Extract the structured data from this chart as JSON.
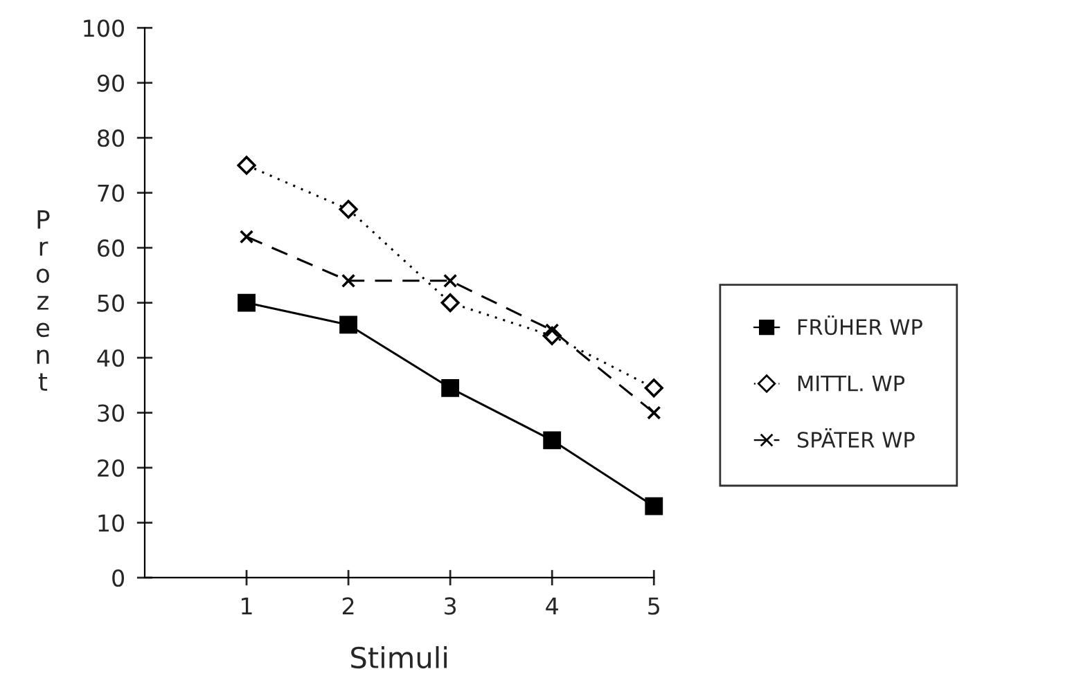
{
  "chart_data": {
    "type": "line",
    "xlabel": "Stimuli",
    "ylabel": "Prozent",
    "x": [
      1,
      2,
      3,
      4,
      5
    ],
    "xlim": [
      0,
      5
    ],
    "xticks": [
      1,
      2,
      3,
      4,
      5
    ],
    "ylim": [
      0,
      100
    ],
    "yticks": [
      0,
      10,
      20,
      30,
      40,
      50,
      60,
      70,
      80,
      90,
      100
    ],
    "grid": false,
    "legend": "right",
    "series": [
      {
        "name": "FRÜHER WP",
        "color": "#000000",
        "marker": "square",
        "line_style": "solid",
        "values": [
          50,
          46,
          34.5,
          25,
          13
        ]
      },
      {
        "name": "MITTL. WP",
        "color": "#000000",
        "marker": "diamond",
        "line_style": "dotted",
        "values": [
          75,
          67,
          50,
          44,
          34.5
        ]
      },
      {
        "name": "SPÄTER WP",
        "color": "#000000",
        "marker": "cross",
        "line_style": "dashed",
        "values": [
          62,
          54,
          54,
          45,
          30
        ]
      }
    ]
  }
}
